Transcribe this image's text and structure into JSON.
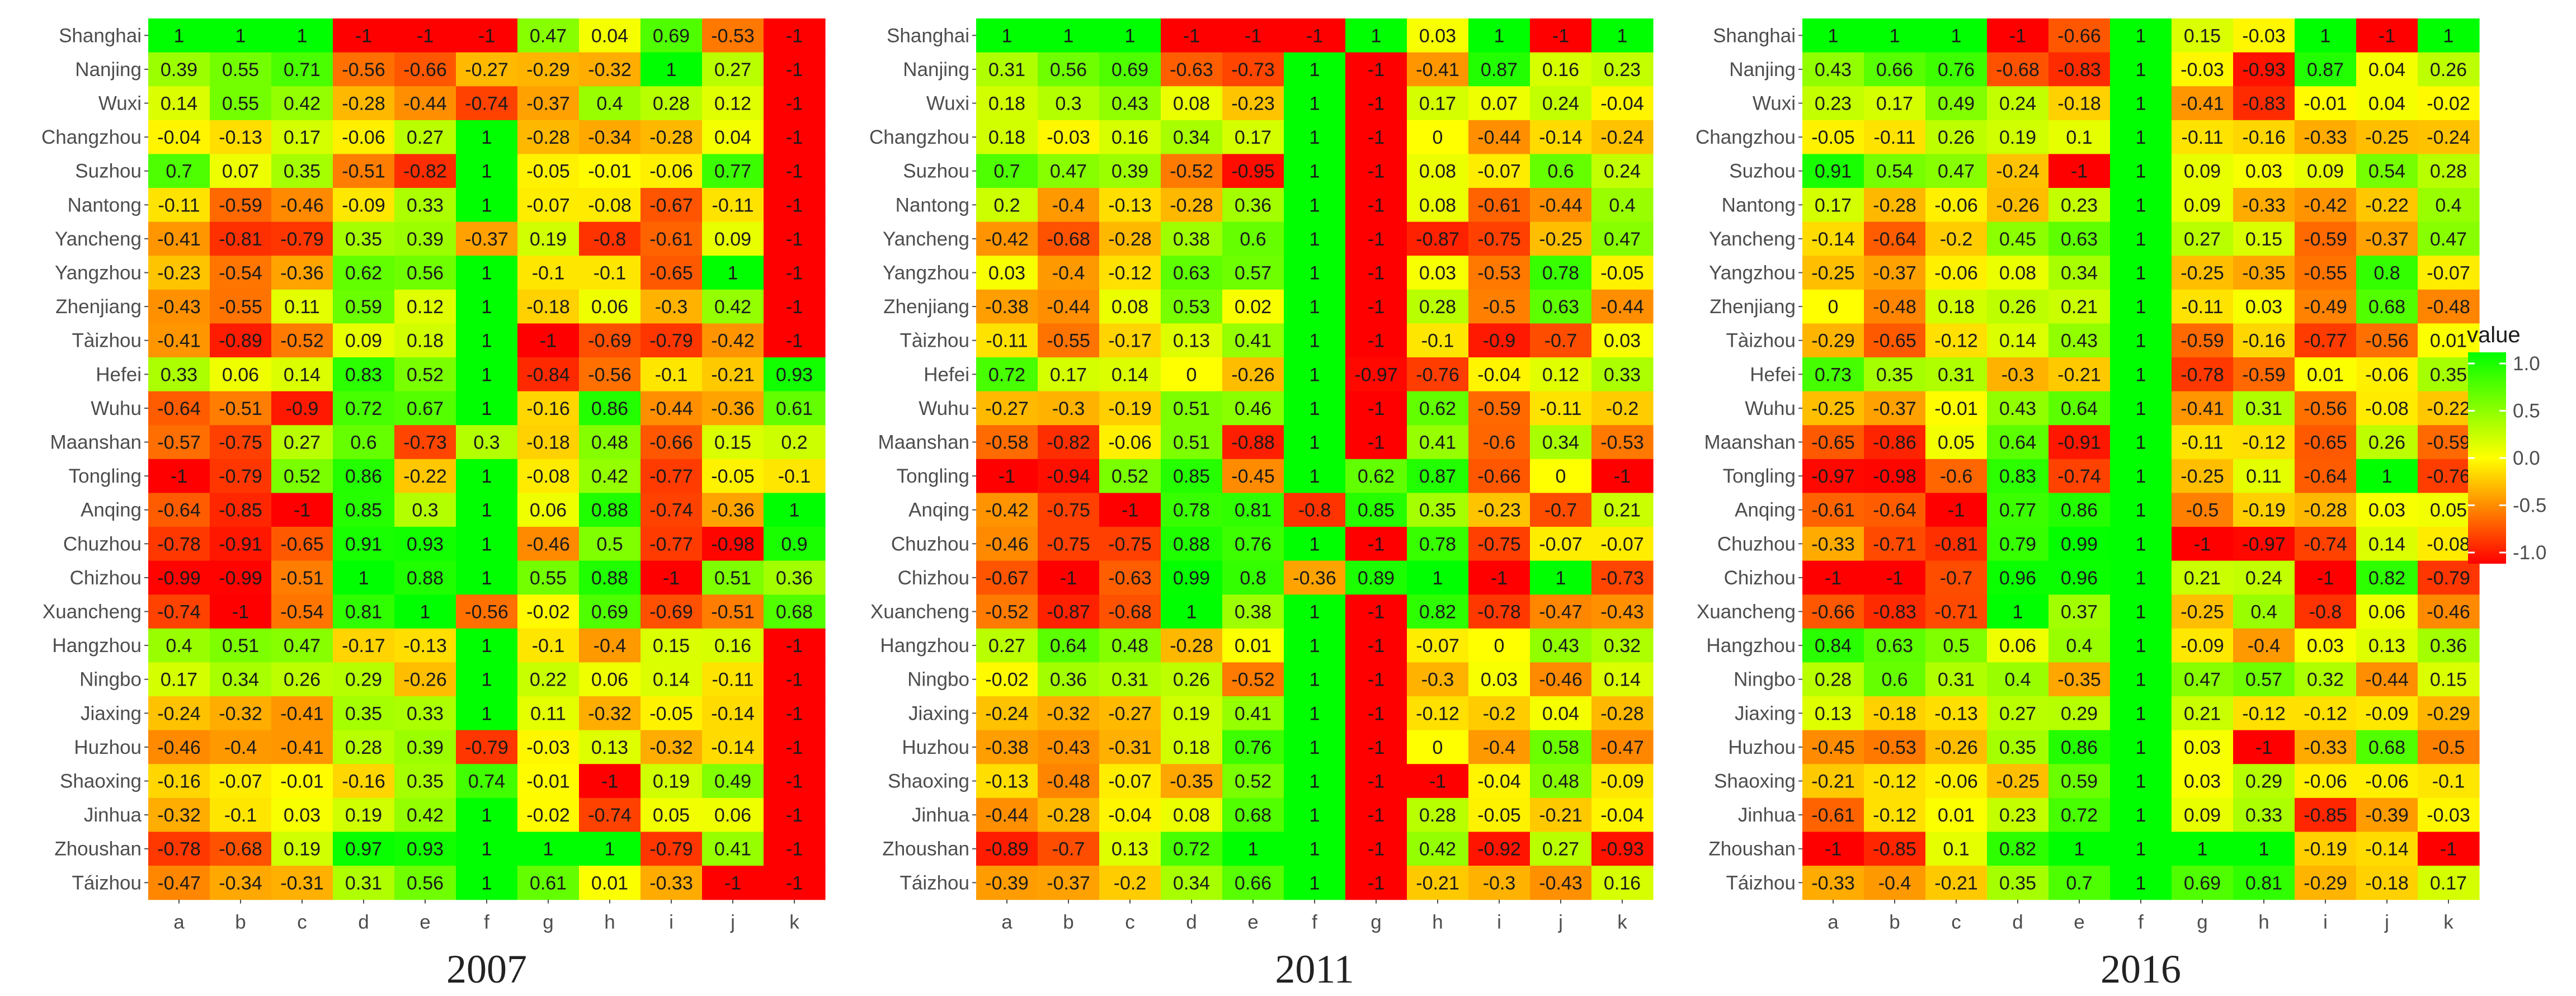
{
  "legend_title": "value",
  "chart_data": [
    {
      "type": "heatmap",
      "title": "2007",
      "x": [
        "a",
        "b",
        "c",
        "d",
        "e",
        "f",
        "g",
        "h",
        "i",
        "j",
        "k"
      ],
      "y": [
        "Shanghai",
        "Nanjing",
        "Wuxi",
        "Changzhou",
        "Suzhou",
        "Nantong",
        "Yancheng",
        "Yangzhou",
        "Zhenjiang",
        "Tàizhou",
        "Hefei",
        "Wuhu",
        "Maanshan",
        "Tongling",
        "Anqing",
        "Chuzhou",
        "Chizhou",
        "Xuancheng",
        "Hangzhou",
        "Ningbo",
        "Jiaxing",
        "Huzhou",
        "Shaoxing",
        "Jinhua",
        "Zhoushan",
        "Táizhou"
      ],
      "values": [
        [
          1,
          1,
          1,
          -1,
          -1,
          -1,
          0.47,
          0.04,
          0.69,
          -0.53,
          -1
        ],
        [
          0.39,
          0.55,
          0.71,
          -0.56,
          -0.66,
          -0.27,
          -0.29,
          -0.32,
          1,
          0.27,
          -1
        ],
        [
          0.14,
          0.55,
          0.42,
          -0.28,
          -0.44,
          -0.74,
          -0.37,
          0.4,
          0.28,
          0.12,
          -1
        ],
        [
          -0.04,
          -0.13,
          0.17,
          -0.06,
          0.27,
          1,
          -0.28,
          -0.34,
          -0.28,
          0.04,
          -1
        ],
        [
          0.7,
          0.07,
          0.35,
          -0.51,
          -0.82,
          1,
          -0.05,
          -0.01,
          -0.06,
          0.77,
          -1
        ],
        [
          -0.11,
          -0.59,
          -0.46,
          -0.09,
          0.33,
          1,
          -0.07,
          -0.08,
          -0.67,
          -0.11,
          -1
        ],
        [
          -0.41,
          -0.81,
          -0.79,
          0.35,
          0.39,
          -0.37,
          0.19,
          -0.8,
          -0.61,
          0.09,
          -1
        ],
        [
          -0.23,
          -0.54,
          -0.36,
          0.62,
          0.56,
          1,
          -0.1,
          -0.1,
          -0.65,
          1,
          -1
        ],
        [
          -0.43,
          -0.55,
          0.11,
          0.59,
          0.12,
          1,
          -0.18,
          0.06,
          -0.3,
          0.42,
          -1
        ],
        [
          -0.41,
          -0.89,
          -0.52,
          0.09,
          0.18,
          1,
          -1,
          -0.69,
          -0.79,
          -0.42,
          -1
        ],
        [
          0.33,
          0.06,
          0.14,
          0.83,
          0.52,
          1,
          -0.84,
          -0.56,
          -0.1,
          -0.21,
          0.93
        ],
        [
          -0.64,
          -0.51,
          -0.9,
          0.72,
          0.67,
          1,
          -0.16,
          0.86,
          -0.44,
          -0.36,
          0.61
        ],
        [
          -0.57,
          -0.75,
          0.27,
          0.6,
          -0.73,
          0.3,
          -0.18,
          0.48,
          -0.66,
          0.15,
          0.2
        ],
        [
          -1,
          -0.79,
          0.52,
          0.86,
          -0.22,
          1,
          -0.08,
          0.42,
          -0.77,
          -0.05,
          -0.1
        ],
        [
          -0.64,
          -0.85,
          -1,
          0.85,
          0.3,
          1,
          0.06,
          0.88,
          -0.74,
          -0.36,
          1
        ],
        [
          -0.78,
          -0.91,
          -0.65,
          0.91,
          0.93,
          1,
          -0.46,
          0.5,
          -0.77,
          -0.98,
          0.9
        ],
        [
          -0.99,
          -0.99,
          -0.51,
          1,
          0.88,
          1,
          0.55,
          0.88,
          -1,
          0.51,
          0.36
        ],
        [
          -0.74,
          -1,
          -0.54,
          0.81,
          1,
          -0.56,
          -0.02,
          0.69,
          -0.69,
          -0.51,
          0.68
        ],
        [
          0.4,
          0.51,
          0.47,
          -0.17,
          -0.13,
          1,
          -0.1,
          -0.4,
          0.15,
          0.16,
          -1
        ],
        [
          0.17,
          0.34,
          0.26,
          0.29,
          -0.26,
          1,
          0.22,
          0.06,
          0.14,
          -0.11,
          -1
        ],
        [
          -0.24,
          -0.32,
          -0.41,
          0.35,
          0.33,
          1,
          0.11,
          -0.32,
          -0.05,
          -0.14,
          -1
        ],
        [
          -0.46,
          -0.4,
          -0.41,
          0.28,
          0.39,
          -0.79,
          -0.03,
          0.13,
          -0.32,
          -0.14,
          -1
        ],
        [
          -0.16,
          -0.07,
          -0.01,
          -0.16,
          0.35,
          0.74,
          -0.01,
          -1,
          0.19,
          0.49,
          -1
        ],
        [
          -0.32,
          -0.1,
          0.03,
          0.19,
          0.42,
          1,
          -0.02,
          -0.74,
          0.05,
          0.06,
          -1
        ],
        [
          -0.78,
          -0.68,
          0.19,
          0.97,
          0.93,
          1,
          1,
          1,
          -0.79,
          0.41,
          -1
        ],
        [
          -0.47,
          -0.34,
          -0.31,
          0.31,
          0.56,
          1,
          0.61,
          0.01,
          -0.33,
          -1,
          -1
        ]
      ]
    },
    {
      "type": "heatmap",
      "title": "2011",
      "x": [
        "a",
        "b",
        "c",
        "d",
        "e",
        "f",
        "g",
        "h",
        "i",
        "j",
        "k"
      ],
      "y": [
        "Shanghai",
        "Nanjing",
        "Wuxi",
        "Changzhou",
        "Suzhou",
        "Nantong",
        "Yancheng",
        "Yangzhou",
        "Zhenjiang",
        "Tàizhou",
        "Hefei",
        "Wuhu",
        "Maanshan",
        "Tongling",
        "Anqing",
        "Chuzhou",
        "Chizhou",
        "Xuancheng",
        "Hangzhou",
        "Ningbo",
        "Jiaxing",
        "Huzhou",
        "Shaoxing",
        "Jinhua",
        "Zhoushan",
        "Táizhou"
      ],
      "values": [
        [
          1,
          1,
          1,
          -1,
          -1,
          -1,
          1,
          0.03,
          1,
          -1,
          1
        ],
        [
          0.31,
          0.56,
          0.69,
          -0.63,
          -0.73,
          1,
          -1,
          -0.41,
          0.87,
          0.16,
          0.23
        ],
        [
          0.18,
          0.3,
          0.43,
          0.08,
          -0.23,
          1,
          -1,
          0.17,
          0.07,
          0.24,
          -0.04
        ],
        [
          0.18,
          -0.03,
          0.16,
          0.34,
          0.17,
          1,
          -1,
          0,
          -0.44,
          -0.14,
          -0.24
        ],
        [
          0.7,
          0.47,
          0.39,
          -0.52,
          -0.95,
          1,
          -1,
          0.08,
          -0.07,
          0.6,
          0.24
        ],
        [
          0.2,
          -0.4,
          -0.13,
          -0.28,
          0.36,
          1,
          -1,
          0.08,
          -0.61,
          -0.44,
          0.4
        ],
        [
          -0.42,
          -0.68,
          -0.28,
          0.38,
          0.6,
          1,
          -1,
          -0.87,
          -0.75,
          -0.25,
          0.47
        ],
        [
          0.03,
          -0.4,
          -0.12,
          0.63,
          0.57,
          1,
          -1,
          0.03,
          -0.53,
          0.78,
          -0.05
        ],
        [
          -0.38,
          -0.44,
          0.08,
          0.53,
          0.02,
          1,
          -1,
          0.28,
          -0.5,
          0.63,
          -0.44
        ],
        [
          -0.11,
          -0.55,
          -0.17,
          0.13,
          0.41,
          1,
          -1,
          -0.1,
          -0.9,
          -0.7,
          0.03
        ],
        [
          0.72,
          0.17,
          0.14,
          0,
          -0.26,
          1,
          -0.97,
          -0.76,
          -0.04,
          0.12,
          0.33
        ],
        [
          -0.27,
          -0.3,
          -0.19,
          0.51,
          0.46,
          1,
          -1,
          0.62,
          -0.59,
          -0.11,
          -0.2
        ],
        [
          -0.58,
          -0.82,
          -0.06,
          0.51,
          -0.88,
          1,
          -1,
          0.41,
          -0.6,
          0.34,
          -0.53
        ],
        [
          -1,
          -0.94,
          0.52,
          0.85,
          -0.45,
          1,
          0.62,
          0.87,
          -0.66,
          0,
          -1
        ],
        [
          -0.42,
          -0.75,
          -1,
          0.78,
          0.81,
          -0.8,
          0.85,
          0.35,
          -0.23,
          -0.7,
          0.21
        ],
        [
          -0.46,
          -0.75,
          -0.75,
          0.88,
          0.76,
          1,
          -1,
          0.78,
          -0.75,
          -0.07,
          -0.07
        ],
        [
          -0.67,
          -1,
          -0.63,
          0.99,
          0.8,
          -0.36,
          0.89,
          1,
          -1,
          1,
          -0.73
        ],
        [
          -0.52,
          -0.87,
          -0.68,
          1,
          0.38,
          1,
          -1,
          0.82,
          -0.78,
          -0.47,
          -0.43
        ],
        [
          0.27,
          0.64,
          0.48,
          -0.28,
          0.01,
          1,
          -1,
          -0.07,
          0,
          0.43,
          0.32
        ],
        [
          -0.02,
          0.36,
          0.31,
          0.26,
          -0.52,
          1,
          -1,
          -0.3,
          0.03,
          -0.46,
          0.14
        ],
        [
          -0.24,
          -0.32,
          -0.27,
          0.19,
          0.41,
          1,
          -1,
          -0.12,
          -0.2,
          0.04,
          -0.28
        ],
        [
          -0.38,
          -0.43,
          -0.31,
          0.18,
          0.76,
          1,
          -1,
          0,
          -0.4,
          0.58,
          -0.47
        ],
        [
          -0.13,
          -0.48,
          -0.07,
          -0.35,
          0.52,
          1,
          -1,
          -1,
          -0.04,
          0.48,
          -0.09
        ],
        [
          -0.44,
          -0.28,
          -0.04,
          0.08,
          0.68,
          1,
          -1,
          0.28,
          -0.05,
          -0.21,
          -0.04
        ],
        [
          -0.89,
          -0.7,
          0.13,
          0.72,
          1,
          1,
          -1,
          0.42,
          -0.92,
          0.27,
          -0.93
        ],
        [
          -0.39,
          -0.37,
          -0.2,
          0.34,
          0.66,
          1,
          -1,
          -0.21,
          -0.3,
          -0.43,
          0.16
        ]
      ]
    },
    {
      "type": "heatmap",
      "title": "2016",
      "x": [
        "a",
        "b",
        "c",
        "d",
        "e",
        "f",
        "g",
        "h",
        "i",
        "j",
        "k"
      ],
      "y": [
        "Shanghai",
        "Nanjing",
        "Wuxi",
        "Changzhou",
        "Suzhou",
        "Nantong",
        "Yancheng",
        "Yangzhou",
        "Zhenjiang",
        "Tàizhou",
        "Hefei",
        "Wuhu",
        "Maanshan",
        "Tongling",
        "Anqing",
        "Chuzhou",
        "Chizhou",
        "Xuancheng",
        "Hangzhou",
        "Ningbo",
        "Jiaxing",
        "Huzhou",
        "Shaoxing",
        "Jinhua",
        "Zhoushan",
        "Táizhou"
      ],
      "values": [
        [
          1,
          1,
          1,
          -1,
          -0.66,
          1,
          0.15,
          -0.03,
          1,
          -1,
          1
        ],
        [
          0.43,
          0.66,
          0.76,
          -0.68,
          -0.83,
          1,
          -0.03,
          -0.93,
          0.87,
          0.04,
          0.26
        ],
        [
          0.23,
          0.17,
          0.49,
          0.24,
          -0.18,
          1,
          -0.41,
          -0.83,
          -0.01,
          0.04,
          -0.02
        ],
        [
          -0.05,
          -0.11,
          0.26,
          0.19,
          0.1,
          1,
          -0.11,
          -0.16,
          -0.33,
          -0.25,
          -0.24
        ],
        [
          0.91,
          0.54,
          0.47,
          -0.24,
          -1,
          1,
          0.09,
          0.03,
          0.09,
          0.54,
          0.28
        ],
        [
          0.17,
          -0.28,
          -0.06,
          -0.26,
          0.23,
          1,
          0.09,
          -0.33,
          -0.42,
          -0.22,
          0.4
        ],
        [
          -0.14,
          -0.64,
          -0.2,
          0.45,
          0.63,
          1,
          0.27,
          0.15,
          -0.59,
          -0.37,
          0.47
        ],
        [
          -0.25,
          -0.37,
          -0.06,
          0.08,
          0.34,
          1,
          -0.25,
          -0.35,
          -0.55,
          0.8,
          -0.07
        ],
        [
          0,
          -0.48,
          0.18,
          0.26,
          0.21,
          1,
          -0.11,
          0.03,
          -0.49,
          0.68,
          -0.48
        ],
        [
          -0.29,
          -0.65,
          -0.12,
          0.14,
          0.43,
          1,
          -0.59,
          -0.16,
          -0.77,
          -0.56,
          0.01
        ],
        [
          0.73,
          0.35,
          0.31,
          -0.3,
          -0.21,
          1,
          -0.78,
          -0.59,
          0.01,
          -0.06,
          0.35
        ],
        [
          -0.25,
          -0.37,
          -0.01,
          0.43,
          0.64,
          1,
          -0.41,
          0.31,
          -0.56,
          -0.08,
          -0.22
        ],
        [
          -0.65,
          -0.86,
          0.05,
          0.64,
          -0.91,
          1,
          -0.11,
          -0.12,
          -0.65,
          0.26,
          -0.59
        ],
        [
          -0.97,
          -0.98,
          -0.6,
          0.83,
          -0.74,
          1,
          -0.25,
          0.11,
          -0.64,
          1,
          -0.76
        ],
        [
          -0.61,
          -0.64,
          -1,
          0.77,
          0.86,
          1,
          -0.5,
          -0.19,
          -0.28,
          0.03,
          0.05
        ],
        [
          -0.33,
          -0.71,
          -0.81,
          0.79,
          0.99,
          1,
          -1,
          -0.97,
          -0.74,
          0.14,
          -0.08
        ],
        [
          -1,
          -1,
          -0.7,
          0.96,
          0.96,
          1,
          0.21,
          0.24,
          -1,
          0.82,
          -0.79
        ],
        [
          -0.66,
          -0.83,
          -0.71,
          1,
          0.37,
          1,
          -0.25,
          0.4,
          -0.8,
          0.06,
          -0.46
        ],
        [
          0.84,
          0.63,
          0.5,
          0.06,
          0.4,
          1,
          -0.09,
          -0.4,
          0.03,
          0.13,
          0.36
        ],
        [
          0.28,
          0.6,
          0.31,
          0.4,
          -0.35,
          1,
          0.47,
          0.57,
          0.32,
          -0.44,
          0.15
        ],
        [
          0.13,
          -0.18,
          -0.13,
          0.27,
          0.29,
          1,
          0.21,
          -0.12,
          -0.12,
          -0.09,
          -0.29
        ],
        [
          -0.45,
          -0.53,
          -0.26,
          0.35,
          0.86,
          1,
          0.03,
          -1,
          -0.33,
          0.68,
          -0.5
        ],
        [
          -0.21,
          -0.12,
          -0.06,
          -0.25,
          0.59,
          1,
          0.03,
          0.29,
          -0.06,
          -0.06,
          -0.1
        ],
        [
          -0.61,
          -0.12,
          0.01,
          0.23,
          0.72,
          1,
          0.09,
          0.33,
          -0.85,
          -0.39,
          -0.03
        ],
        [
          -1,
          -0.85,
          0.1,
          0.82,
          1,
          1,
          1,
          1,
          -0.19,
          -0.14,
          -1
        ],
        [
          -0.33,
          -0.4,
          -0.21,
          0.35,
          0.7,
          1,
          0.69,
          0.81,
          -0.29,
          -0.18,
          0.17
        ]
      ]
    }
  ],
  "legend": {
    "title": "value",
    "ticks": [
      1.0,
      0.5,
      0.0,
      -0.5,
      -1.0
    ],
    "tick_labels": [
      "1.0",
      "0.5",
      "0.0",
      "-0.5",
      "-1.0"
    ],
    "range": [
      -1,
      1
    ],
    "colors": {
      "low": "#ff0000",
      "mid": "#ffff00",
      "high": "#00ff00"
    }
  }
}
